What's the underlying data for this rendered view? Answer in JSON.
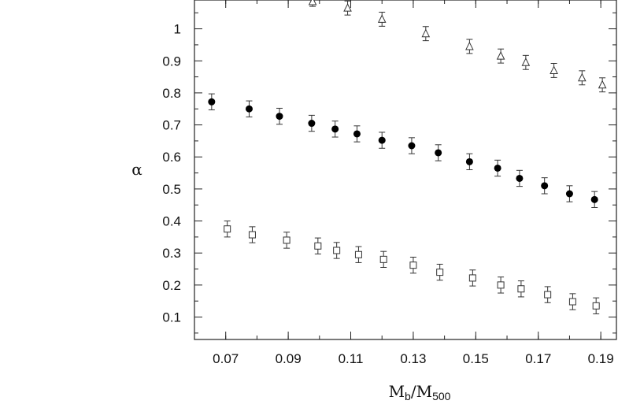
{
  "chart_data": {
    "type": "scatter",
    "xlabel": {
      "main": "M",
      "sub1": "b",
      "sep": "/M",
      "sub2": "500"
    },
    "ylabel": "α",
    "xlim": [
      0.06,
      0.195
    ],
    "ylim": [
      0.03,
      1.09
    ],
    "x_ticks": [
      "0.07",
      "0.09",
      "0.11",
      "0.13",
      "0.15",
      "0.17",
      "0.19"
    ],
    "y_ticks": [
      "0.1",
      "0.2",
      "0.3",
      "0.4",
      "0.5",
      "0.6",
      "0.7",
      "0.8",
      "0.9",
      "1"
    ],
    "grid": false,
    "series": [
      {
        "marker": "triangle-open",
        "points": [
          {
            "x": 0.0978,
            "y": 1.085,
            "err": 0.015
          },
          {
            "x": 0.109,
            "y": 1.065,
            "err": 0.022
          },
          {
            "x": 0.12,
            "y": 1.03,
            "err": 0.022
          },
          {
            "x": 0.134,
            "y": 0.985,
            "err": 0.022
          },
          {
            "x": 0.148,
            "y": 0.945,
            "err": 0.022
          },
          {
            "x": 0.158,
            "y": 0.915,
            "err": 0.022
          },
          {
            "x": 0.166,
            "y": 0.895,
            "err": 0.022
          },
          {
            "x": 0.175,
            "y": 0.87,
            "err": 0.022
          },
          {
            "x": 0.184,
            "y": 0.847,
            "err": 0.022
          },
          {
            "x": 0.1905,
            "y": 0.825,
            "err": 0.022
          }
        ]
      },
      {
        "marker": "circle-filled",
        "points": [
          {
            "x": 0.0655,
            "y": 0.772,
            "err": 0.025
          },
          {
            "x": 0.0775,
            "y": 0.75,
            "err": 0.025
          },
          {
            "x": 0.0872,
            "y": 0.727,
            "err": 0.025
          },
          {
            "x": 0.0975,
            "y": 0.705,
            "err": 0.025
          },
          {
            "x": 0.105,
            "y": 0.687,
            "err": 0.025
          },
          {
            "x": 0.112,
            "y": 0.672,
            "err": 0.025
          },
          {
            "x": 0.12,
            "y": 0.652,
            "err": 0.025
          },
          {
            "x": 0.1295,
            "y": 0.635,
            "err": 0.025
          },
          {
            "x": 0.138,
            "y": 0.613,
            "err": 0.025
          },
          {
            "x": 0.148,
            "y": 0.585,
            "err": 0.025
          },
          {
            "x": 0.157,
            "y": 0.565,
            "err": 0.025
          },
          {
            "x": 0.164,
            "y": 0.533,
            "err": 0.025
          },
          {
            "x": 0.172,
            "y": 0.51,
            "err": 0.025
          },
          {
            "x": 0.18,
            "y": 0.485,
            "err": 0.025
          },
          {
            "x": 0.188,
            "y": 0.467,
            "err": 0.025
          }
        ]
      },
      {
        "marker": "square-open",
        "points": [
          {
            "x": 0.0705,
            "y": 0.375,
            "err": 0.025
          },
          {
            "x": 0.0785,
            "y": 0.357,
            "err": 0.025
          },
          {
            "x": 0.0895,
            "y": 0.34,
            "err": 0.025
          },
          {
            "x": 0.0995,
            "y": 0.322,
            "err": 0.025
          },
          {
            "x": 0.1055,
            "y": 0.308,
            "err": 0.025
          },
          {
            "x": 0.1125,
            "y": 0.295,
            "err": 0.025
          },
          {
            "x": 0.1205,
            "y": 0.28,
            "err": 0.025
          },
          {
            "x": 0.13,
            "y": 0.262,
            "err": 0.025
          },
          {
            "x": 0.1385,
            "y": 0.24,
            "err": 0.025
          },
          {
            "x": 0.149,
            "y": 0.222,
            "err": 0.025
          },
          {
            "x": 0.158,
            "y": 0.2,
            "err": 0.025
          },
          {
            "x": 0.1645,
            "y": 0.188,
            "err": 0.025
          },
          {
            "x": 0.173,
            "y": 0.17,
            "err": 0.025
          },
          {
            "x": 0.181,
            "y": 0.148,
            "err": 0.025
          },
          {
            "x": 0.1885,
            "y": 0.135,
            "err": 0.025
          }
        ]
      }
    ]
  }
}
